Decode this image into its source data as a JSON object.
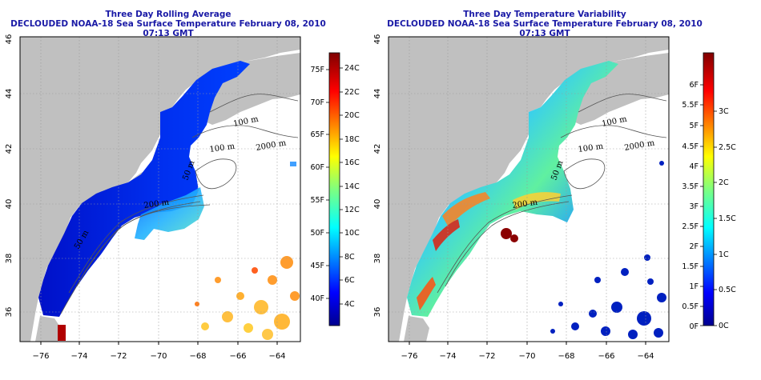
{
  "panels": [
    {
      "id": "left",
      "title": "Three Day Rolling Average",
      "subtitle": "DECLOUDED NOAA-18 Sea Surface Temperature February 08, 2010 07:13 GMT",
      "colorbar": {
        "f_labels": [
          "75F",
          "70F",
          "65F",
          "60F",
          "55F",
          "50F",
          "45F",
          "40F"
        ],
        "c_labels": [
          "24C",
          "22C",
          "20C",
          "18C",
          "16C",
          "14C",
          "12C",
          "10C",
          "8C",
          "6C",
          "4C"
        ]
      }
    },
    {
      "id": "right",
      "title": "Three Day Temperature Variability",
      "subtitle": "DECLOUDED NOAA-18 Sea Surface Temperature February 08, 2010 07:13 GMT",
      "colorbar": {
        "f_labels": [
          "6F",
          "5.5F",
          "5F",
          "4.5F",
          "4F",
          "3.5F",
          "3F",
          "2.5F",
          "2F",
          "1.5F",
          "1F",
          "0.5F",
          "0F"
        ],
        "c_labels": [
          "3C",
          "2.5C",
          "2C",
          "1.5C",
          "1C",
          "0.5C",
          "0C"
        ]
      }
    }
  ],
  "axes": {
    "lon_labels": [
      "−76",
      "−74",
      "−72",
      "−70",
      "−68",
      "−66",
      "−64"
    ],
    "lat_labels": [
      "36",
      "38",
      "40",
      "42",
      "44",
      "46"
    ]
  },
  "contour_labels": [
    "100 m",
    "2000 m",
    "100 m",
    "200 m",
    "50 m",
    "200 m",
    "50 m"
  ],
  "colors": {
    "land": "#c0c0c0",
    "title": "#1a1aa6"
  }
}
